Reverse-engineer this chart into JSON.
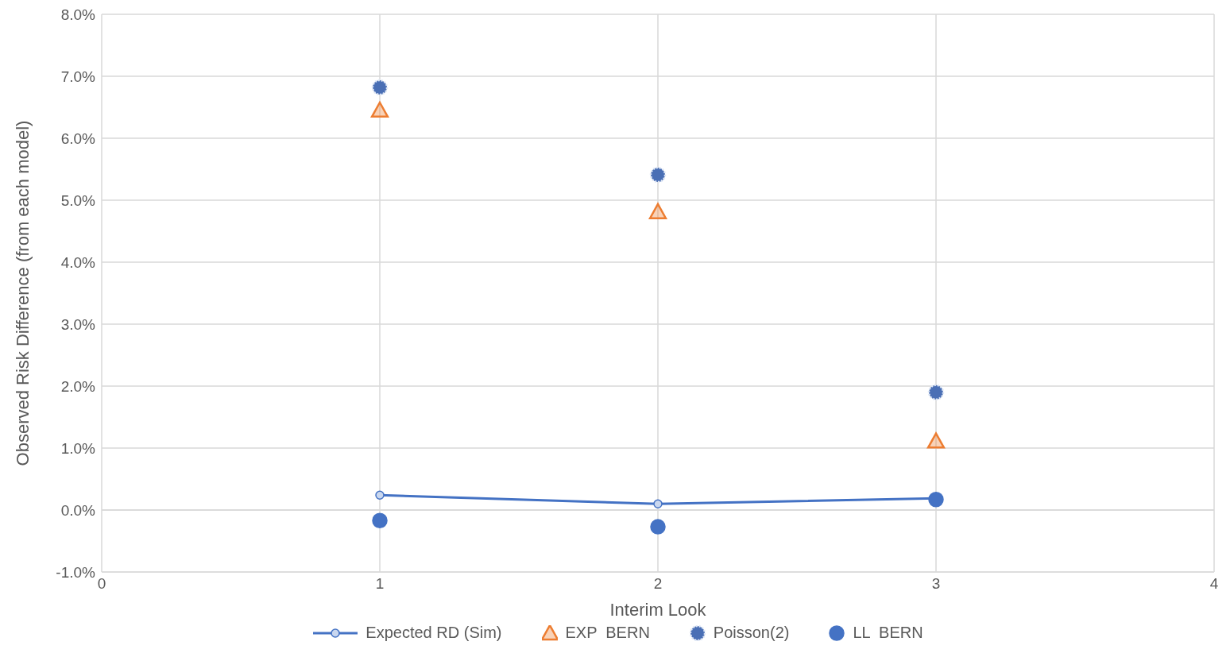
{
  "chart_data": {
    "type": "scatter",
    "xlabel": "Interim Look",
    "ylabel": "Observed Risk Difference (from each model)",
    "x": [
      1,
      2,
      3
    ],
    "series": [
      {
        "name": "Expected RD (Sim)",
        "type": "line",
        "color": "#4472c4",
        "marker": "circle",
        "values": [
          0.24,
          0.1,
          0.19
        ]
      },
      {
        "name": "EXP  BERN",
        "color": "#ed7d31",
        "marker": "triangle",
        "values": [
          6.45,
          4.81,
          1.11
        ]
      },
      {
        "name": "Poisson(2)",
        "color": "#4a6fb5",
        "marker": "circle",
        "values": [
          6.82,
          5.41,
          1.9
        ]
      },
      {
        "name": "LL  BERN",
        "color": "#4472c4",
        "marker": "circle",
        "values": [
          -0.17,
          -0.27,
          0.17
        ]
      }
    ],
    "xlim": [
      0,
      4
    ],
    "xticks": [
      0,
      1,
      2,
      3,
      4
    ],
    "ylim": [
      -1,
      8
    ],
    "yticks": [
      {
        "value": -1,
        "label": "-1.0%"
      },
      {
        "value": 0,
        "label": "0.0%"
      },
      {
        "value": 1,
        "label": "1.0%"
      },
      {
        "value": 2,
        "label": "2.0%"
      },
      {
        "value": 3,
        "label": "3.0%"
      },
      {
        "value": 4,
        "label": "4.0%"
      },
      {
        "value": 5,
        "label": "5.0%"
      },
      {
        "value": 6,
        "label": "6.0%"
      },
      {
        "value": 7,
        "label": "7.0%"
      },
      {
        "value": 8,
        "label": "8.0%"
      }
    ],
    "grid": true,
    "legend": "bottom"
  }
}
